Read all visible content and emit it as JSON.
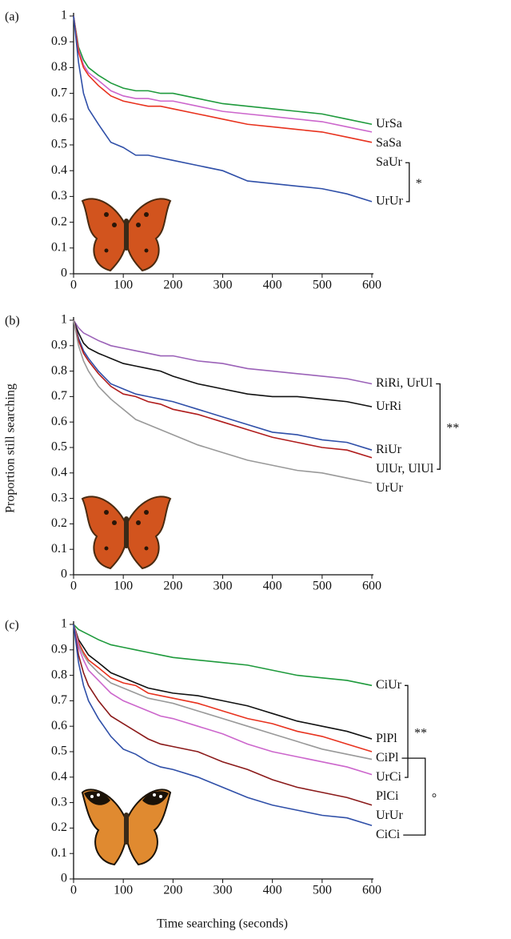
{
  "y_label": "Proportion still searching",
  "x_label": "Time searching (seconds)",
  "chart_data": [
    {
      "type": "line",
      "panel_label": "(a)",
      "xlim": [
        0,
        600
      ],
      "ylim": [
        0,
        1
      ],
      "xticks": [
        0,
        100,
        200,
        300,
        400,
        500,
        600
      ],
      "yticks": [
        0,
        0.1,
        0.2,
        0.3,
        0.4,
        0.5,
        0.6,
        0.7,
        0.8,
        0.9,
        1
      ],
      "x": [
        0,
        10,
        20,
        30,
        50,
        75,
        100,
        125,
        150,
        175,
        200,
        250,
        300,
        350,
        400,
        450,
        500,
        550,
        600
      ],
      "series": [
        {
          "name": "UrSa",
          "color": "#1e9a3c",
          "values": [
            1,
            0.88,
            0.83,
            0.8,
            0.77,
            0.74,
            0.72,
            0.71,
            0.71,
            0.7,
            0.7,
            0.68,
            0.66,
            0.65,
            0.64,
            0.63,
            0.62,
            0.6,
            0.58
          ]
        },
        {
          "name": "SaSa",
          "color": "#cc66cc",
          "values": [
            1,
            0.87,
            0.81,
            0.78,
            0.75,
            0.71,
            0.69,
            0.68,
            0.68,
            0.67,
            0.67,
            0.65,
            0.63,
            0.62,
            0.61,
            0.6,
            0.59,
            0.57,
            0.55
          ]
        },
        {
          "name": "SaUr",
          "color": "#e8321e",
          "values": [
            1,
            0.86,
            0.8,
            0.77,
            0.73,
            0.69,
            0.67,
            0.66,
            0.65,
            0.65,
            0.64,
            0.62,
            0.6,
            0.58,
            0.57,
            0.56,
            0.55,
            0.53,
            0.51
          ]
        },
        {
          "name": "UrUr",
          "color": "#2f4fa8",
          "values": [
            1,
            0.82,
            0.7,
            0.64,
            0.58,
            0.51,
            0.49,
            0.46,
            0.46,
            0.45,
            0.44,
            0.42,
            0.4,
            0.36,
            0.35,
            0.34,
            0.33,
            0.31,
            0.28
          ]
        }
      ],
      "brackets": [
        {
          "label": "*",
          "from": "SaUr",
          "to": "UrUr"
        }
      ]
    },
    {
      "type": "line",
      "panel_label": "(b)",
      "xlim": [
        0,
        600
      ],
      "ylim": [
        0,
        1
      ],
      "xticks": [
        0,
        100,
        200,
        300,
        400,
        500,
        600
      ],
      "yticks": [
        0,
        0.1,
        0.2,
        0.3,
        0.4,
        0.5,
        0.6,
        0.7,
        0.8,
        0.9,
        1
      ],
      "x": [
        0,
        10,
        20,
        30,
        50,
        75,
        100,
        125,
        150,
        175,
        200,
        250,
        300,
        350,
        400,
        450,
        500,
        550,
        600
      ],
      "series": [
        {
          "name": "RiRi, UrUl",
          "color": "#9b62b8",
          "values": [
            1,
            0.97,
            0.95,
            0.94,
            0.92,
            0.9,
            0.89,
            0.88,
            0.87,
            0.86,
            0.86,
            0.84,
            0.83,
            0.81,
            0.8,
            0.79,
            0.78,
            0.77,
            0.75
          ]
        },
        {
          "name": "UrRi",
          "color": "#111111",
          "values": [
            1,
            0.95,
            0.91,
            0.89,
            0.87,
            0.85,
            0.83,
            0.82,
            0.81,
            0.8,
            0.78,
            0.75,
            0.73,
            0.71,
            0.7,
            0.7,
            0.69,
            0.68,
            0.66
          ]
        },
        {
          "name": "RiUr",
          "color": "#2f4fa8",
          "values": [
            1,
            0.93,
            0.88,
            0.85,
            0.8,
            0.75,
            0.73,
            0.71,
            0.7,
            0.69,
            0.68,
            0.65,
            0.62,
            0.59,
            0.56,
            0.55,
            0.53,
            0.52,
            0.49
          ]
        },
        {
          "name": "UlUr, UlUl",
          "color": "#b01c1c",
          "values": [
            1,
            0.92,
            0.87,
            0.84,
            0.79,
            0.74,
            0.71,
            0.7,
            0.68,
            0.67,
            0.65,
            0.63,
            0.6,
            0.57,
            0.54,
            0.52,
            0.5,
            0.49,
            0.46
          ]
        },
        {
          "name": "UrUr",
          "color": "#999999",
          "values": [
            1,
            0.9,
            0.84,
            0.8,
            0.74,
            0.69,
            0.65,
            0.61,
            0.59,
            0.57,
            0.55,
            0.51,
            0.48,
            0.45,
            0.43,
            0.41,
            0.4,
            0.38,
            0.36
          ]
        }
      ],
      "brackets": [
        {
          "label": "**",
          "from": "RiRi, UrUl",
          "to": "UlUr, UlUl"
        }
      ]
    },
    {
      "type": "line",
      "panel_label": "(c)",
      "xlim": [
        0,
        600
      ],
      "ylim": [
        0,
        1
      ],
      "xticks": [
        0,
        100,
        200,
        300,
        400,
        500,
        600
      ],
      "yticks": [
        0,
        0.1,
        0.2,
        0.3,
        0.4,
        0.5,
        0.6,
        0.7,
        0.8,
        0.9,
        1
      ],
      "x": [
        0,
        10,
        20,
        30,
        50,
        75,
        100,
        125,
        150,
        175,
        200,
        250,
        300,
        350,
        400,
        450,
        500,
        550,
        600
      ],
      "series": [
        {
          "name": "CiUr",
          "color": "#1e9a3c",
          "values": [
            1,
            0.98,
            0.97,
            0.96,
            0.94,
            0.92,
            0.91,
            0.9,
            0.89,
            0.88,
            0.87,
            0.86,
            0.85,
            0.84,
            0.82,
            0.8,
            0.79,
            0.78,
            0.76
          ]
        },
        {
          "name": "PlPl",
          "color": "#111111",
          "values": [
            1,
            0.94,
            0.91,
            0.88,
            0.85,
            0.81,
            0.79,
            0.77,
            0.75,
            0.74,
            0.73,
            0.72,
            0.7,
            0.68,
            0.65,
            0.62,
            0.6,
            0.58,
            0.55
          ]
        },
        {
          "name": "CiPl",
          "color": "#e8321e",
          "values": [
            1,
            0.93,
            0.89,
            0.86,
            0.83,
            0.79,
            0.77,
            0.76,
            0.73,
            0.72,
            0.71,
            0.69,
            0.66,
            0.63,
            0.61,
            0.58,
            0.56,
            0.53,
            0.5
          ]
        },
        {
          "name": "UrCi",
          "color": "#999999",
          "values": [
            1,
            0.92,
            0.88,
            0.85,
            0.81,
            0.77,
            0.75,
            0.73,
            0.71,
            0.7,
            0.69,
            0.66,
            0.63,
            0.6,
            0.57,
            0.54,
            0.51,
            0.49,
            0.47
          ]
        },
        {
          "name": "PlCi",
          "color": "#cc66cc",
          "values": [
            1,
            0.91,
            0.86,
            0.82,
            0.78,
            0.73,
            0.7,
            0.68,
            0.66,
            0.64,
            0.63,
            0.6,
            0.57,
            0.53,
            0.5,
            0.48,
            0.46,
            0.44,
            0.41
          ]
        },
        {
          "name": "UrUr",
          "color": "#8b1a1a",
          "values": [
            1,
            0.88,
            0.81,
            0.76,
            0.7,
            0.64,
            0.61,
            0.58,
            0.55,
            0.53,
            0.52,
            0.5,
            0.46,
            0.43,
            0.39,
            0.36,
            0.34,
            0.32,
            0.29
          ]
        },
        {
          "name": "CiCi",
          "color": "#2f4fa8",
          "values": [
            1,
            0.85,
            0.76,
            0.7,
            0.63,
            0.56,
            0.51,
            0.49,
            0.46,
            0.44,
            0.43,
            0.4,
            0.36,
            0.32,
            0.29,
            0.27,
            0.25,
            0.24,
            0.21
          ]
        }
      ],
      "brackets": [
        {
          "label": "**",
          "from": "CiUr",
          "to": "UrCi"
        },
        {
          "label": "°",
          "from": "CiPl",
          "to": "CiCi"
        }
      ]
    }
  ]
}
